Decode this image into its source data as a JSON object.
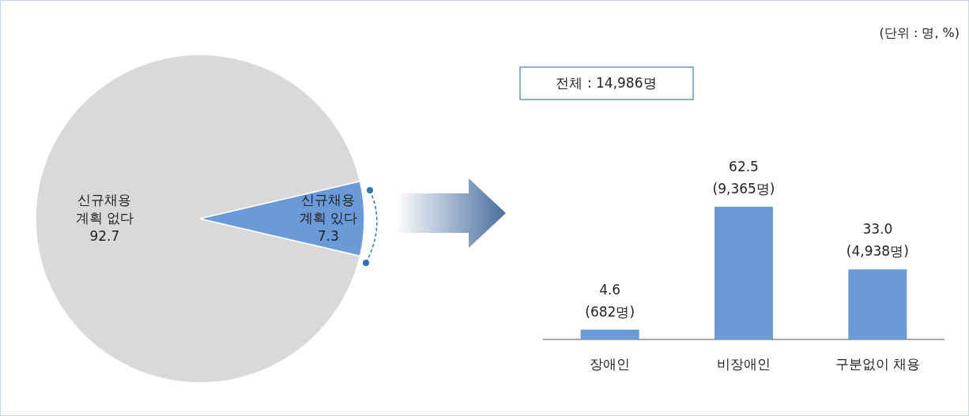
{
  "chart_data": [
    {
      "type": "pie",
      "categories": [
        "신규채용\n계획 없다",
        "신규채용\n계획 있다"
      ],
      "values": [
        92.7,
        7.3
      ],
      "colors": [
        "#d9d9d9",
        "#6a9bd8"
      ],
      "data_labels": true
    },
    {
      "type": "bar",
      "categories": [
        "장애인",
        "비장애인",
        "구분없이 채용"
      ],
      "values": [
        4.6,
        62.5,
        33.0
      ],
      "color": "#6a9bd8",
      "value_labels": [
        "4.6\n(682명)",
        "62.5\n(9,365명)",
        "33.0\n(4,938명)"
      ],
      "annotations": [
        "(단위 : 명, %)",
        "전체 : 14,986명"
      ]
    }
  ]
}
